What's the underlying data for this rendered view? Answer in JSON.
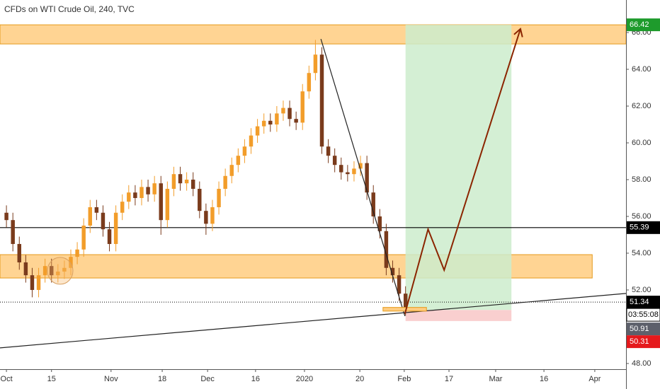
{
  "chart_data": {
    "type": "candlestick",
    "title": "CFDs on WTI Crude Oil, 240, TVC",
    "up_color": "#f29d2a",
    "down_color": "#7a3b1c",
    "xlim": [
      -2,
      192.5
    ],
    "ylim": [
      47.69,
      67.77
    ],
    "xticks": [
      {
        "value": 0,
        "label": "Oct"
      },
      {
        "value": 14,
        "label": "15"
      },
      {
        "value": 32.5,
        "label": "Nov"
      },
      {
        "value": 48.4,
        "label": "18"
      },
      {
        "value": 62.5,
        "label": "Dec"
      },
      {
        "value": 77.4,
        "label": "16"
      },
      {
        "value": 92.6,
        "label": "2020"
      },
      {
        "value": 109.8,
        "label": "20"
      },
      {
        "value": 123.6,
        "label": "Feb"
      },
      {
        "value": 137.5,
        "label": "17"
      },
      {
        "value": 152,
        "label": "Mar"
      },
      {
        "value": 167,
        "label": "16"
      },
      {
        "value": 182.8,
        "label": "Apr"
      }
    ],
    "yticks": [
      {
        "value": 48,
        "label": "48.00"
      },
      {
        "value": 52,
        "label": "52.00"
      },
      {
        "value": 54,
        "label": "54.00"
      },
      {
        "value": 56,
        "label": "56.00"
      },
      {
        "value": 58,
        "label": "58.00"
      },
      {
        "value": 60,
        "label": "60.00"
      },
      {
        "value": 62,
        "label": "62.00"
      },
      {
        "value": 64,
        "label": "64.00"
      },
      {
        "value": 66,
        "label": "66.00"
      }
    ],
    "x": [
      0,
      2,
      4,
      6,
      8,
      10,
      12,
      14,
      16,
      18,
      20,
      22,
      24,
      26,
      28,
      30,
      32,
      34,
      36,
      38,
      40,
      42,
      44,
      46,
      48,
      50,
      52,
      54,
      56,
      58,
      60,
      62,
      64,
      66,
      68,
      70,
      72,
      74,
      76,
      78,
      80,
      82,
      84,
      86,
      88,
      90,
      92,
      94,
      96,
      98,
      100,
      102,
      104,
      106,
      108,
      110,
      112,
      114,
      116,
      118,
      120,
      122,
      124
    ],
    "open": [
      56.2,
      55.8,
      54.5,
      53.5,
      52.8,
      52.0,
      52.8,
      53.3,
      52.8,
      53.0,
      53.2,
      53.8,
      54.2,
      55.5,
      56.5,
      56.2,
      55.3,
      54.5,
      56.2,
      56.8,
      57.3,
      57.0,
      57.6,
      57.2,
      57.8,
      55.8,
      57.5,
      58.3,
      57.8,
      58.0,
      57.5,
      56.3,
      55.6,
      56.5,
      57.5,
      58.2,
      58.8,
      59.3,
      59.8,
      60.4,
      60.9,
      61.2,
      61.0,
      61.6,
      61.9,
      61.3,
      61.1,
      62.8,
      63.8,
      64.8,
      59.8,
      59.3,
      58.8,
      58.4,
      58.3,
      58.6,
      58.9,
      57.3,
      56.0,
      55.2,
      53.2,
      52.8,
      51.8
    ],
    "high": [
      56.6,
      56.2,
      54.9,
      53.9,
      53.2,
      53.2,
      53.7,
      53.7,
      53.4,
      53.6,
      54.2,
      54.6,
      55.9,
      56.9,
      56.9,
      56.6,
      55.7,
      56.6,
      57.2,
      57.7,
      57.7,
      58.0,
      58.0,
      58.2,
      58.2,
      57.9,
      58.7,
      58.7,
      58.4,
      58.4,
      57.9,
      56.7,
      56.9,
      57.9,
      58.6,
      59.2,
      59.7,
      60.2,
      60.8,
      61.3,
      61.6,
      61.6,
      62.0,
      62.3,
      62.3,
      61.7,
      63.2,
      64.2,
      65.6,
      65.2,
      60.2,
      59.7,
      59.2,
      58.8,
      59.0,
      59.3,
      59.3,
      57.7,
      56.4,
      55.6,
      53.6,
      53.2,
      52.2
    ],
    "low": [
      55.4,
      54.1,
      53.1,
      52.4,
      51.6,
      51.6,
      52.4,
      52.4,
      52.4,
      52.6,
      52.8,
      53.4,
      53.8,
      55.1,
      55.8,
      54.9,
      54.1,
      54.1,
      55.8,
      56.4,
      56.6,
      56.6,
      56.8,
      56.8,
      55.0,
      55.4,
      57.1,
      57.4,
      57.4,
      57.1,
      55.9,
      55.0,
      55.2,
      56.1,
      57.1,
      57.8,
      58.4,
      58.9,
      59.4,
      60.0,
      60.5,
      60.6,
      60.6,
      61.2,
      60.9,
      60.7,
      60.7,
      62.4,
      63.4,
      59.4,
      58.9,
      58.4,
      58.0,
      57.9,
      57.9,
      58.2,
      56.9,
      55.6,
      54.8,
      52.8,
      52.4,
      51.4,
      50.6
    ],
    "close": [
      55.8,
      54.5,
      53.5,
      52.8,
      52.0,
      52.8,
      53.3,
      52.8,
      53.0,
      53.2,
      53.8,
      54.2,
      55.5,
      56.5,
      56.2,
      55.3,
      54.5,
      56.2,
      56.8,
      57.3,
      57.0,
      57.6,
      57.2,
      57.8,
      55.8,
      57.5,
      58.3,
      57.8,
      58.0,
      57.5,
      56.3,
      55.6,
      56.5,
      57.5,
      58.2,
      58.8,
      59.3,
      59.8,
      60.4,
      60.9,
      61.2,
      61.0,
      61.6,
      61.9,
      61.3,
      61.1,
      62.8,
      63.8,
      64.8,
      59.8,
      59.3,
      58.8,
      58.4,
      58.3,
      58.6,
      58.9,
      57.3,
      56.0,
      55.2,
      53.2,
      52.8,
      51.8,
      51.0
    ],
    "zones": [
      {
        "x": [
          -2,
          192.5
        ],
        "y": [
          65.38,
          66.42
        ]
      },
      {
        "x": [
          -2,
          182
        ],
        "y": [
          52.65,
          53.92
        ]
      }
    ],
    "zone_color": "#ffcc80",
    "zone_border": "#e59a1c",
    "hlines": [
      {
        "value": 55.39,
        "style": "solid"
      },
      {
        "value": 51.34,
        "style": "dotted"
      }
    ],
    "trendlines": [
      {
        "x": [
          97.7,
          123.8
        ],
        "y": [
          65.65,
          50.58
        ]
      },
      {
        "x": [
          -2,
          192.5
        ],
        "y": [
          48.85,
          51.81
        ]
      }
    ],
    "position": {
      "x": [
        124,
        156.9
      ],
      "entry": 50.91,
      "target": 66.42,
      "stop": 50.31,
      "profit_color": "#cdeccc",
      "loss_color": "#f9cfcf"
    },
    "entry_marker": {
      "x": [
        117,
        130.5
      ],
      "y": [
        50.85,
        51.05
      ]
    },
    "circle": {
      "x": 16.7,
      "y": 53.04
    },
    "path": {
      "x": [
        123.8,
        131,
        136,
        159.7
      ],
      "y": [
        50.7,
        55.3,
        53.08,
        66.2
      ],
      "color": "#8b2500"
    },
    "price_labels": [
      {
        "value": 66.42,
        "color": "#1e9b2c"
      },
      {
        "value": 55.39,
        "color": "#000000"
      },
      {
        "value": 51.34,
        "color": "#000000"
      },
      {
        "value": 50.91,
        "color": "#5d606b"
      },
      {
        "value": 50.31,
        "color": "#e5191c"
      }
    ],
    "countdown": "03:55:08"
  }
}
